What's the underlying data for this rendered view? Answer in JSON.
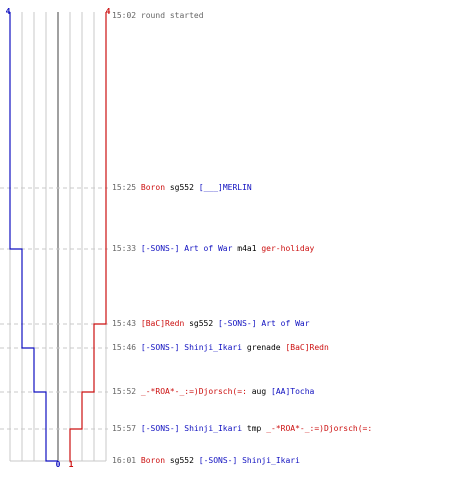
{
  "colors": {
    "blue": "#1010c0",
    "red": "#cc1010",
    "black": "#000000",
    "grid": "#c8c8c8",
    "center": "#888888",
    "dash": "#c8c8c8",
    "time": "#666666"
  },
  "chart_data": {
    "type": "line",
    "title": "",
    "blue_top_label": "4",
    "red_top_label": "4",
    "blue_bottom_label": "0",
    "red_bottom_label": "1",
    "series": [
      {
        "color_key": "blue",
        "values": [
          4,
          4,
          3,
          3,
          2,
          1,
          1,
          0
        ]
      },
      {
        "color_key": "red",
        "values": [
          4,
          4,
          4,
          3,
          3,
          2,
          1,
          1
        ]
      }
    ]
  },
  "events": [
    {
      "time": "15:02",
      "parts": [
        {
          "text": "round started",
          "color": "time"
        }
      ]
    },
    {
      "time": "15:25",
      "parts": [
        {
          "text": "Boron",
          "color": "red"
        },
        {
          "text": "sg552",
          "color": "black"
        },
        {
          "text": "[___]MERLIN",
          "color": "blue"
        }
      ]
    },
    {
      "time": "15:33",
      "parts": [
        {
          "text": "[-SONS-] Art of War",
          "color": "blue"
        },
        {
          "text": "m4a1",
          "color": "black"
        },
        {
          "text": "ger-holiday",
          "color": "red"
        }
      ]
    },
    {
      "time": "15:43",
      "parts": [
        {
          "text": "[BaC]Redn",
          "color": "red"
        },
        {
          "text": "sg552",
          "color": "black"
        },
        {
          "text": "[-SONS-] Art of War",
          "color": "blue"
        }
      ]
    },
    {
      "time": "15:46",
      "parts": [
        {
          "text": "[-SONS-] Shinji_Ikari",
          "color": "blue"
        },
        {
          "text": "grenade",
          "color": "black"
        },
        {
          "text": "[BaC]Redn",
          "color": "red"
        }
      ]
    },
    {
      "time": "15:52",
      "parts": [
        {
          "text": "_-*ROA*-_:=)Djorsch(=:",
          "color": "red"
        },
        {
          "text": "aug",
          "color": "black"
        },
        {
          "text": "[AA]Tocha",
          "color": "blue"
        }
      ]
    },
    {
      "time": "15:57",
      "parts": [
        {
          "text": "[-SONS-] Shinji_Ikari",
          "color": "blue"
        },
        {
          "text": "tmp",
          "color": "black"
        },
        {
          "text": "_-*ROA*-_:=)Djorsch(=:",
          "color": "red"
        }
      ]
    },
    {
      "time": "16:01",
      "parts": [
        {
          "text": "Boron",
          "color": "red"
        },
        {
          "text": "sg552",
          "color": "black"
        },
        {
          "text": "[-SONS-] Shinji_Ikari",
          "color": "blue"
        }
      ]
    }
  ]
}
